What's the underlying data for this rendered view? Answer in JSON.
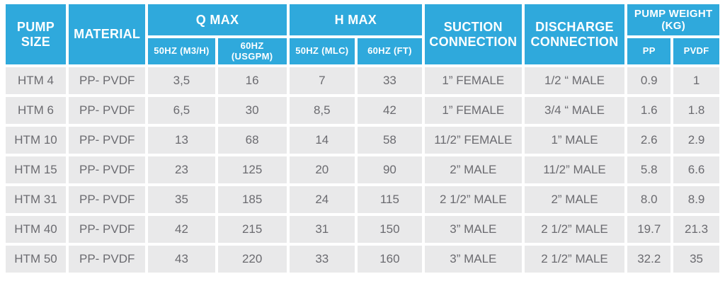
{
  "colors": {
    "accent_blue": "#2FA9DC",
    "cell_background": "#E9E9EA",
    "cell_text": "#6B6B70",
    "header_text": "#FFFFFF",
    "page_background": "#FFFFFF"
  },
  "header": {
    "pump_size": "PUMP SIZE",
    "material": "MATERIAL",
    "q_max": "Q MAX",
    "h_max": "H MAX",
    "suction_connection": "SUCTION CONNECTION",
    "discharge_connection": "DISCHARGE CONNECTION",
    "pump_weight": "PUMP WEIGHT (KG)",
    "sub_q_50hz": "50HZ (M3/H)",
    "sub_q_60hz": "60HZ (USGPM)",
    "sub_h_50hz": "50HZ (MLC)",
    "sub_h_60hz": "60HZ (FT)",
    "sub_pp": "PP",
    "sub_pvdf": "PVDF"
  },
  "rows": [
    [
      "HTM 4",
      "PP- PVDF",
      "3,5",
      "16",
      "7",
      "33",
      "1” FEMALE",
      "1/2 “ MALE",
      "0.9",
      "1"
    ],
    [
      "HTM 6",
      "PP- PVDF",
      "6,5",
      "30",
      "8,5",
      "42",
      "1” FEMALE",
      "3/4 “ MALE",
      "1.6",
      "1.8"
    ],
    [
      "HTM 10",
      "PP- PVDF",
      "13",
      "68",
      "14",
      "58",
      "11/2” FEMALE",
      "1” MALE",
      "2.6",
      "2.9"
    ],
    [
      "HTM 15",
      "PP- PVDF",
      "23",
      "125",
      "20",
      "90",
      "2” MALE",
      "11/2” MALE",
      "5.8",
      "6.6"
    ],
    [
      "HTM 31",
      "PP- PVDF",
      "35",
      "185",
      "24",
      "115",
      "2 1/2” MALE",
      "2” MALE",
      "8.0",
      "8.9"
    ],
    [
      "HTM 40",
      "PP- PVDF",
      "42",
      "215",
      "31",
      "150",
      "3” MALE",
      "2 1/2” MALE",
      "19.7",
      "21.3"
    ],
    [
      "HTM 50",
      "PP- PVDF",
      "43",
      "220",
      "33",
      "160",
      "3” MALE",
      "2 1/2” MALE",
      "32.2",
      "35"
    ]
  ]
}
